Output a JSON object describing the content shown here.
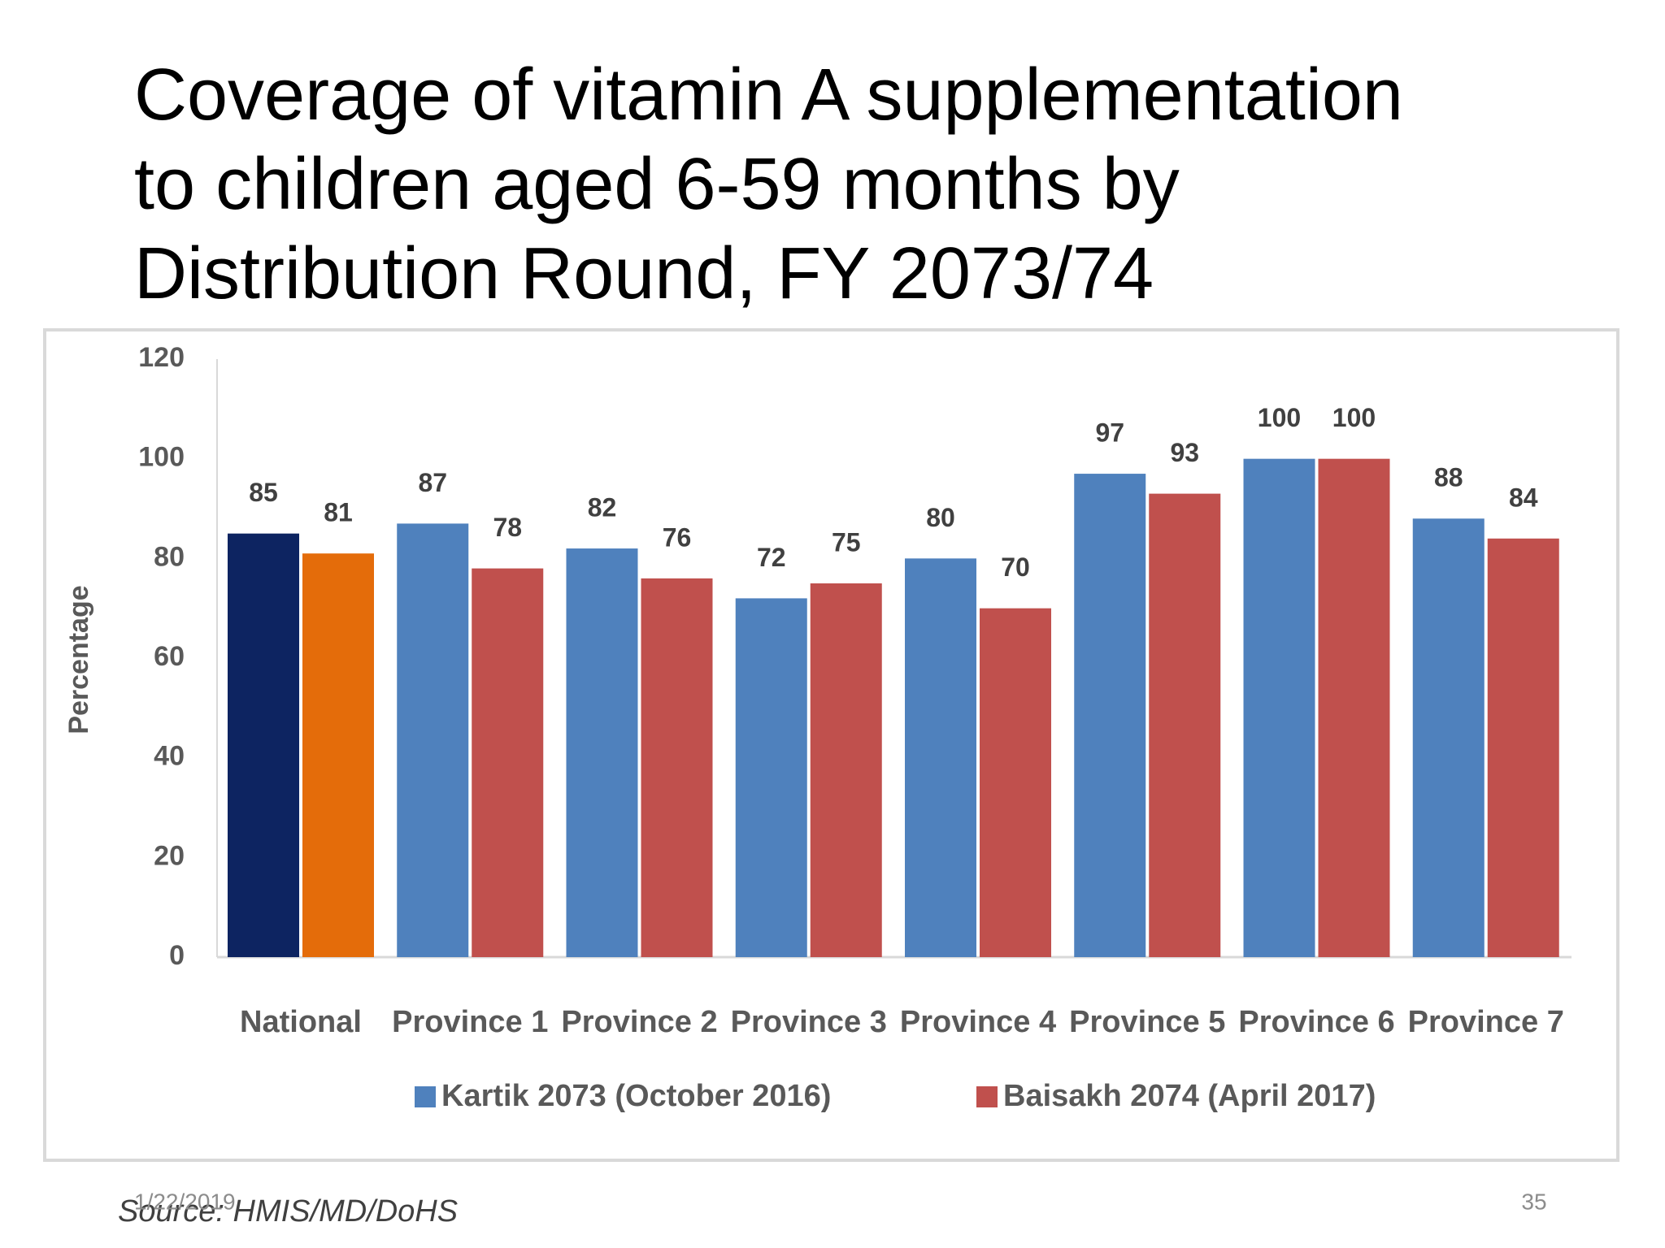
{
  "slide": {
    "title_lines": [
      "Coverage of vitamin A supplementation",
      "to children aged 6-59 months by",
      "Distribution Round, FY 2073/74"
    ],
    "source": "Source: HMIS/MD/DoHS",
    "date": "1/22/2019",
    "page_number": "35"
  },
  "chart_data": {
    "type": "bar",
    "y_label": "Percentage",
    "categories": [
      "National",
      "Province 1",
      "Province 2",
      "Province 3",
      "Province 4",
      "Province 5",
      "Province 6",
      "Province 7"
    ],
    "series": [
      {
        "name": "Kartik 2073 (October 2016)",
        "color": "#4f81bd",
        "colors": [
          "#0d2461",
          "#4f81bd",
          "#4f81bd",
          "#4f81bd",
          "#4f81bd",
          "#4f81bd",
          "#4f81bd",
          "#4f81bd"
        ],
        "values": [
          85,
          87,
          82,
          72,
          80,
          97,
          100,
          88
        ]
      },
      {
        "name": "Baisakh 2074 (April 2017)",
        "color": "#c0504d",
        "colors": [
          "#e46c0a",
          "#c0504d",
          "#c0504d",
          "#c0504d",
          "#c0504d",
          "#c0504d",
          "#c0504d",
          "#c0504d"
        ],
        "values": [
          81,
          78,
          76,
          75,
          70,
          93,
          100,
          84
        ]
      }
    ],
    "ylim": [
      0,
      120
    ],
    "yticks": [
      0,
      20,
      40,
      60,
      80,
      100,
      120
    ],
    "grid": false,
    "legend": "bottom"
  }
}
